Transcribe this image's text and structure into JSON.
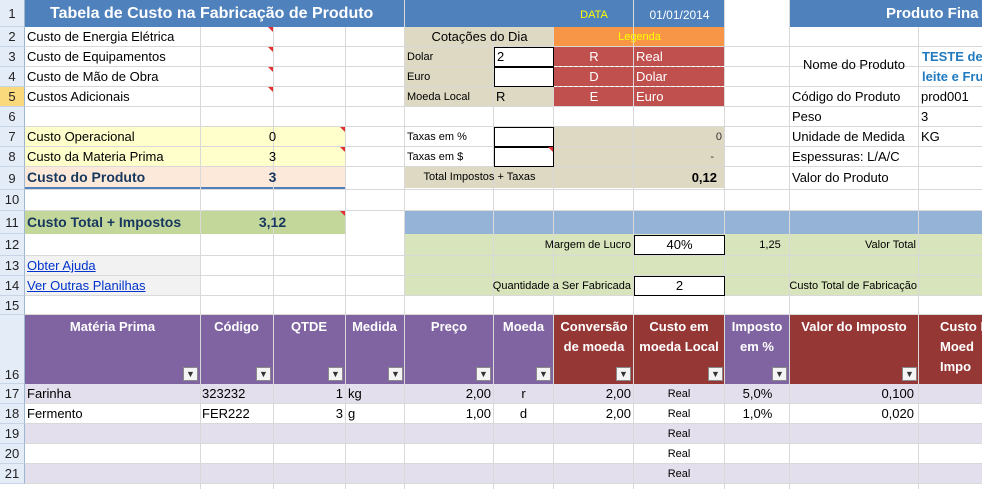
{
  "title_left": "Tabela de Custo na Fabricação de Produto",
  "date_label": "DATA",
  "date_value": "01/01/2014",
  "title_right": "Produto Fina",
  "row_numbers": [
    "1",
    "2",
    "3",
    "4",
    "5",
    "6",
    "7",
    "8",
    "9",
    "10",
    "11",
    "12",
    "13",
    "14",
    "15",
    "16",
    "17",
    "18",
    "19",
    "20",
    "21"
  ],
  "costs": {
    "energia": "Custo de Energia Elétrica",
    "equipamentos": "Custo de Equipamentos",
    "mao_obra": "Custo de Mão de Obra",
    "adicionais": "Custos Adicionais",
    "operacional_label": "Custo Operacional",
    "operacional_value": "0",
    "materia_label": "Custo da Materia Prima",
    "materia_value": "3",
    "produto_label": "Custo do Produto",
    "produto_value": "3",
    "total_label": "Custo Total + Impostos",
    "total_value": "3,12"
  },
  "links": {
    "ajuda": "Obter Ajuda",
    "planilhas": "Ver Outras Planilhas"
  },
  "cotacoes": {
    "header": "Cotações do Dia",
    "dolar_label": "Dolar",
    "dolar_value": "2",
    "euro_label": "Euro",
    "moeda_label": "Moeda Local",
    "moeda_value": "R"
  },
  "legenda": {
    "header": "Legenda",
    "rows": [
      {
        "code": "R",
        "name": "Real"
      },
      {
        "code": "D",
        "name": "Dolar"
      },
      {
        "code": "E",
        "name": "Euro"
      }
    ]
  },
  "taxas": {
    "pct_label": "Taxas em %",
    "pct_value": "0",
    "cash_label": "Taxas em $",
    "cash_value": "-",
    "total_label": "Total Impostos + Taxas",
    "total_value": "0,12"
  },
  "produto": {
    "nome_label": "Nome do Produto",
    "nome_value_1": "TESTE de C",
    "nome_value_2": "leite e Fru",
    "codigo_label": "Código do Produto",
    "codigo_value": "prod001",
    "peso_label": "Peso",
    "peso_value": "3",
    "unidade_label": "Unidade de Medida",
    "unidade_value": "KG",
    "espessuras_label": "Espessuras: L/A/C",
    "valor_label": "Valor do Produto"
  },
  "margem": {
    "label": "Margem de Lucro",
    "value": "40%",
    "factor": "1,25",
    "valor_total_label": "Valor Total",
    "qtd_label": "Quantidade a Ser Fabricada",
    "qtd_value": "2",
    "custo_fab_label": "Custo Total de Fabricação"
  },
  "table": {
    "headers": {
      "materia": "Matéria Prima",
      "codigo": "Código",
      "qtde": "QTDE",
      "medida": "Medida",
      "preco": "Preço",
      "moeda": "Moeda",
      "conversao": "Conversão de moeda",
      "custo_local": "Custo em moeda Local",
      "imposto_pct": "Imposto em %",
      "valor_imposto": "Valor do Imposto",
      "custo_d": "Custo D Moed Impo"
    },
    "rows": [
      {
        "materia": "Farinha",
        "codigo": "323232",
        "qtde": "1",
        "medida": "kg",
        "preco": "2,00",
        "moeda": "r",
        "conversao": "2,00",
        "custo_local": "Real",
        "imposto": "5,0%",
        "valor_imposto": "0,100"
      },
      {
        "materia": "Fermento",
        "codigo": "FER222",
        "qtde": "3",
        "medida": "g",
        "preco": "1,00",
        "moeda": "d",
        "conversao": "2,00",
        "custo_local": "Real",
        "imposto": "1,0%",
        "valor_imposto": "0,020"
      }
    ],
    "empty_rows": [
      {
        "custo_local": "Real"
      },
      {
        "custo_local": "Real"
      },
      {
        "custo_local": "Real"
      }
    ]
  },
  "colors": {
    "title_blue": "#4f81bd",
    "tan": "#ddd9c3",
    "orange": "#f79646",
    "red": "#c0504d",
    "yellow_light": "#ffffcc",
    "peach": "#fde9d9",
    "green": "#c4d79b",
    "green_light": "#d8e4bc",
    "purple": "#8064a2",
    "dark_red": "#953735",
    "lavender": "#e4dfec"
  }
}
